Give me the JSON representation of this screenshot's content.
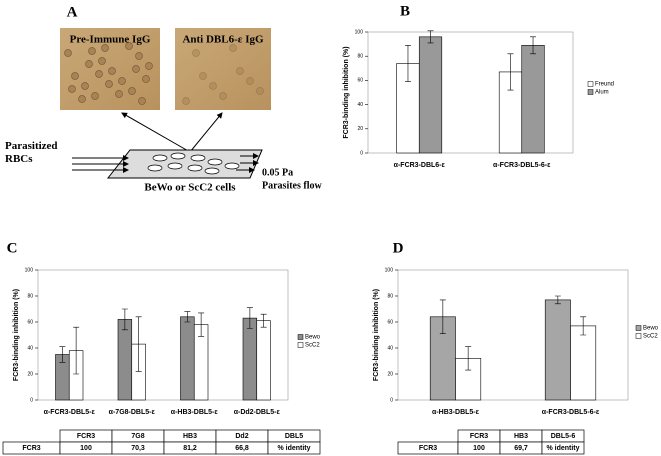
{
  "diagram": {
    "panel": "A",
    "images": [
      "Pre-Immune IgG",
      "Anti DBL6-ε IgG"
    ],
    "left_label": "Parasitized RBCs",
    "bottom_label": "BeWo or ScC2 cells",
    "right_label_1": "0.05 Pa",
    "right_label_2": "Parasites flow"
  },
  "chart_data": [
    {
      "type": "bar",
      "panel": "B",
      "ylabel": "FCR3-binding inhibition (%)",
      "categories": [
        "α-FCR3-DBL6-ε",
        "α-FCR3-DBL5-6-ε"
      ],
      "series": [
        {
          "name": "Freund",
          "color": "#ffffff",
          "values": [
            74,
            67
          ],
          "errors": [
            15,
            15
          ]
        },
        {
          "name": "Alum",
          "color": "#999999",
          "values": [
            96,
            89
          ],
          "errors": [
            5,
            7
          ]
        }
      ],
      "ylim": [
        0,
        100
      ],
      "yticks": [
        0,
        20,
        40,
        60,
        80,
        100
      ],
      "grid": false,
      "legend": "right"
    },
    {
      "type": "bar",
      "panel": "C",
      "ylabel": "FCR3-binding inhibition (%)",
      "categories": [
        "α-FCR3-DBL5-ε",
        "α-7G8-DBL5-ε",
        "α-HB3-DBL5-ε",
        "α-Dd2-DBL5-ε"
      ],
      "series": [
        {
          "name": "Bewo",
          "color": "#8c8c8c",
          "values": [
            35,
            62,
            64,
            63
          ],
          "errors": [
            6,
            8,
            4,
            8
          ]
        },
        {
          "name": "ScC2",
          "color": "#ffffff",
          "values": [
            38,
            43,
            58,
            61
          ],
          "errors": [
            18,
            21,
            9,
            5
          ]
        }
      ],
      "ylim": [
        0,
        100
      ],
      "yticks": [
        0,
        20,
        40,
        60,
        80,
        100
      ],
      "grid": false,
      "legend": "right"
    },
    {
      "type": "bar",
      "panel": "D",
      "ylabel": "FCR3-binding inhibition (%)",
      "categories": [
        "α-HB3-DBL5-ε",
        "α-FCR3-DBL5-6-ε"
      ],
      "series": [
        {
          "name": "Bewo",
          "color": "#a6a6a6",
          "values": [
            64,
            77
          ],
          "errors": [
            13,
            3
          ]
        },
        {
          "name": "ScC2",
          "color": "#ffffff",
          "values": [
            32,
            57
          ],
          "errors": [
            9,
            7
          ]
        }
      ],
      "ylim": [
        0,
        100
      ],
      "yticks": [
        0,
        20,
        40,
        60,
        80,
        100
      ],
      "grid": false,
      "legend": "right"
    }
  ],
  "tables": [
    {
      "header": [
        "FCR3",
        "7G8",
        "HB3",
        "Dd2",
        "DBL5"
      ],
      "rows": [
        [
          "FCR3",
          "100",
          "70,3",
          "81,2",
          "66,8",
          "% identity"
        ]
      ]
    },
    {
      "header": [
        "FCR3",
        "HB3",
        "DBL5-6"
      ],
      "rows": [
        [
          "FCR3",
          "100",
          "69,7",
          "% identity"
        ]
      ]
    }
  ]
}
